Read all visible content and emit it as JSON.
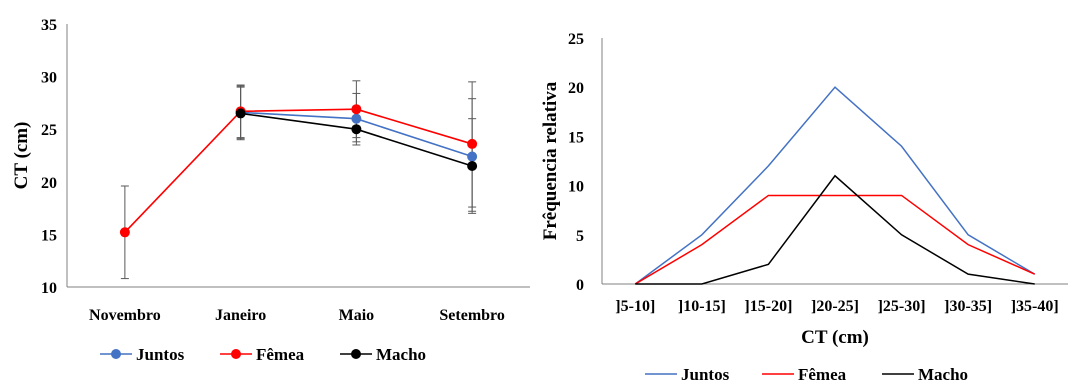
{
  "chart_data": [
    {
      "type": "line",
      "ylabel": "CT (cm)",
      "xlabel": "",
      "ylim": [
        10,
        35
      ],
      "ytick_labels": [
        "10",
        "15",
        "20",
        "25",
        "30",
        "35"
      ],
      "categories": [
        "Novembro",
        "Janeiro",
        "Maio",
        "Setembro"
      ],
      "legend": "bottom",
      "grid": false,
      "series": [
        {
          "name": "Juntos",
          "color": "#4472C4",
          "values": [
            null,
            26.6,
            26.0,
            22.4
          ],
          "error_low": [
            null,
            24.1,
            23.8,
            17.2
          ],
          "error_high": [
            null,
            29.1,
            28.4,
            27.9
          ]
        },
        {
          "name": "Fêmea",
          "color": "#FF0000",
          "values": [
            15.2,
            26.7,
            26.9,
            23.6
          ],
          "error_low": [
            10.8,
            24.2,
            24.2,
            17.6
          ],
          "error_high": [
            19.6,
            29.2,
            29.6,
            29.5
          ]
        },
        {
          "name": "Macho",
          "color": "#000000",
          "values": [
            null,
            26.5,
            25.0,
            21.5
          ],
          "error_low": [
            null,
            24.0,
            23.5,
            17.0
          ],
          "error_high": [
            null,
            29.0,
            26.8,
            26.0
          ]
        }
      ]
    },
    {
      "type": "line",
      "xlabel": "CT (cm)",
      "ylabel": "Frêquencia relativa",
      "ylim": [
        0,
        25
      ],
      "ytick_labels": [
        "0",
        "5",
        "10",
        "15",
        "20",
        "25"
      ],
      "categories": [
        "]5-10]",
        "]10-15]",
        "]15-20]",
        "]20-25]",
        "]25-30]",
        "]30-35]",
        "]35-40]"
      ],
      "legend": "bottom",
      "grid": false,
      "series": [
        {
          "name": "Juntos",
          "color": "#4472C4",
          "values": [
            0,
            5,
            12,
            20,
            14,
            5,
            1
          ]
        },
        {
          "name": "Fêmea",
          "color": "#FF0000",
          "values": [
            0,
            4,
            9,
            9,
            9,
            4,
            1
          ]
        },
        {
          "name": "Macho",
          "color": "#000000",
          "values": [
            0,
            0,
            2,
            11,
            5,
            1,
            0
          ]
        }
      ]
    }
  ]
}
